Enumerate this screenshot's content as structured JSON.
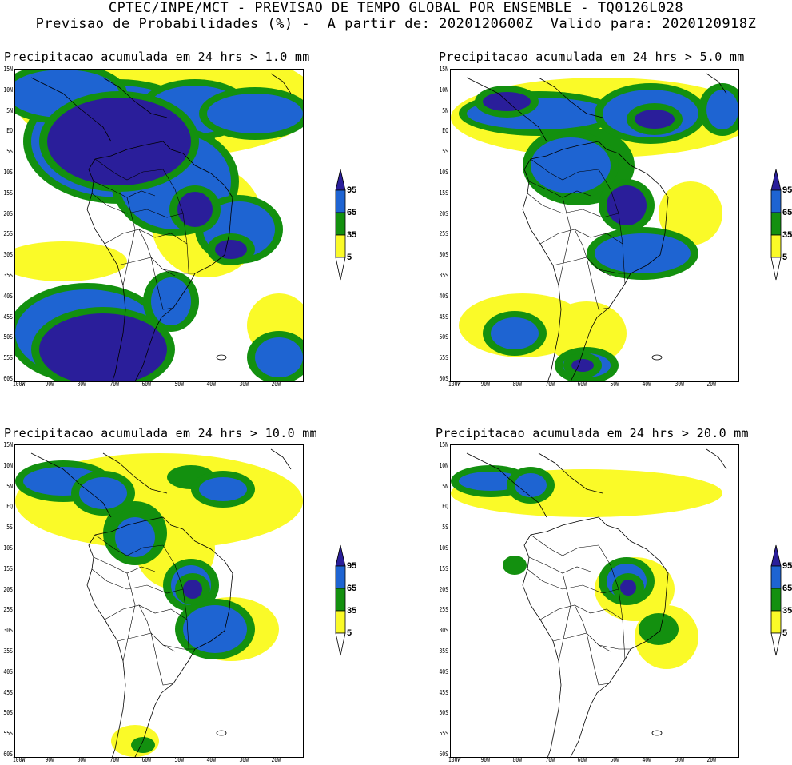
{
  "header": {
    "line1": "CPTEC/INPE/MCT - PREVISAO DE TEMPO GLOBAL POR ENSEMBLE - TQ0126L028",
    "line2": "Previsao de Probabilidades (%) -  A partir de: 2020120600Z  Valido para: 2020120918Z"
  },
  "panels": [
    {
      "title": "Precipitacao acumulada em 24 hrs > 1.0 mm"
    },
    {
      "title": "Precipitacao acumulada em 24 hrs > 5.0 mm"
    },
    {
      "title": "Precipitacao acumulada em 24 hrs > 10.0 mm"
    },
    {
      "title": "Precipitacao acumulada em 24 hrs > 20.0 mm"
    }
  ],
  "axes": {
    "lat_labels": [
      "15N",
      "10N",
      "5N",
      "EQ",
      "5S",
      "10S",
      "15S",
      "20S",
      "25S",
      "30S",
      "35S",
      "40S",
      "45S",
      "50S",
      "55S",
      "60S"
    ],
    "lon_labels": [
      "100W",
      "90W",
      "80W",
      "70W",
      "60W",
      "50W",
      "40W",
      "30W",
      "20W"
    ]
  },
  "legend": {
    "levels": [
      "95",
      "65",
      "35",
      "5"
    ],
    "colors": {
      "c95": "#2a1e9a",
      "c65": "#1e64d2",
      "c35": "#13900f",
      "c5": "#fafa28"
    }
  }
}
